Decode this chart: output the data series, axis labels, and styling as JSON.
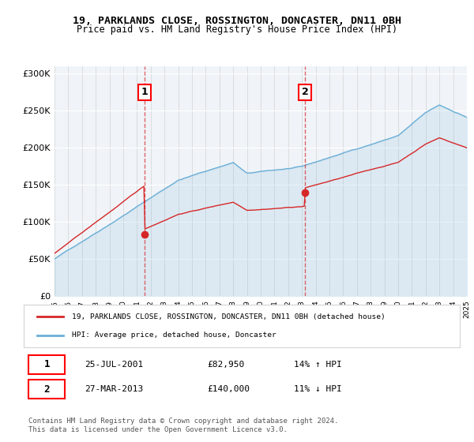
{
  "title1": "19, PARKLANDS CLOSE, ROSSINGTON, DONCASTER, DN11 0BH",
  "title2": "Price paid vs. HM Land Registry's House Price Index (HPI)",
  "legend_label1": "19, PARKLANDS CLOSE, ROSSINGTON, DONCASTER, DN11 0BH (detached house)",
  "legend_label2": "HPI: Average price, detached house, Doncaster",
  "annotation1_label": "1",
  "annotation1_date": "25-JUL-2001",
  "annotation1_price": "£82,950",
  "annotation1_hpi": "14% ↑ HPI",
  "annotation2_label": "2",
  "annotation2_date": "27-MAR-2013",
  "annotation2_price": "£140,000",
  "annotation2_hpi": "11% ↓ HPI",
  "footer": "Contains HM Land Registry data © Crown copyright and database right 2024.\nThis data is licensed under the Open Government Licence v3.0.",
  "hpi_color": "#6baed6",
  "price_color": "#d62728",
  "dashed_vline_color": "#d62728",
  "background_color": "#ffffff",
  "plot_bg_color": "#f0f4f8",
  "ylim": [
    0,
    310000
  ],
  "year_start": 1995,
  "year_end": 2025,
  "transaction1_year": 2001.56,
  "transaction1_value": 82950,
  "transaction2_year": 2013.23,
  "transaction2_value": 140000
}
